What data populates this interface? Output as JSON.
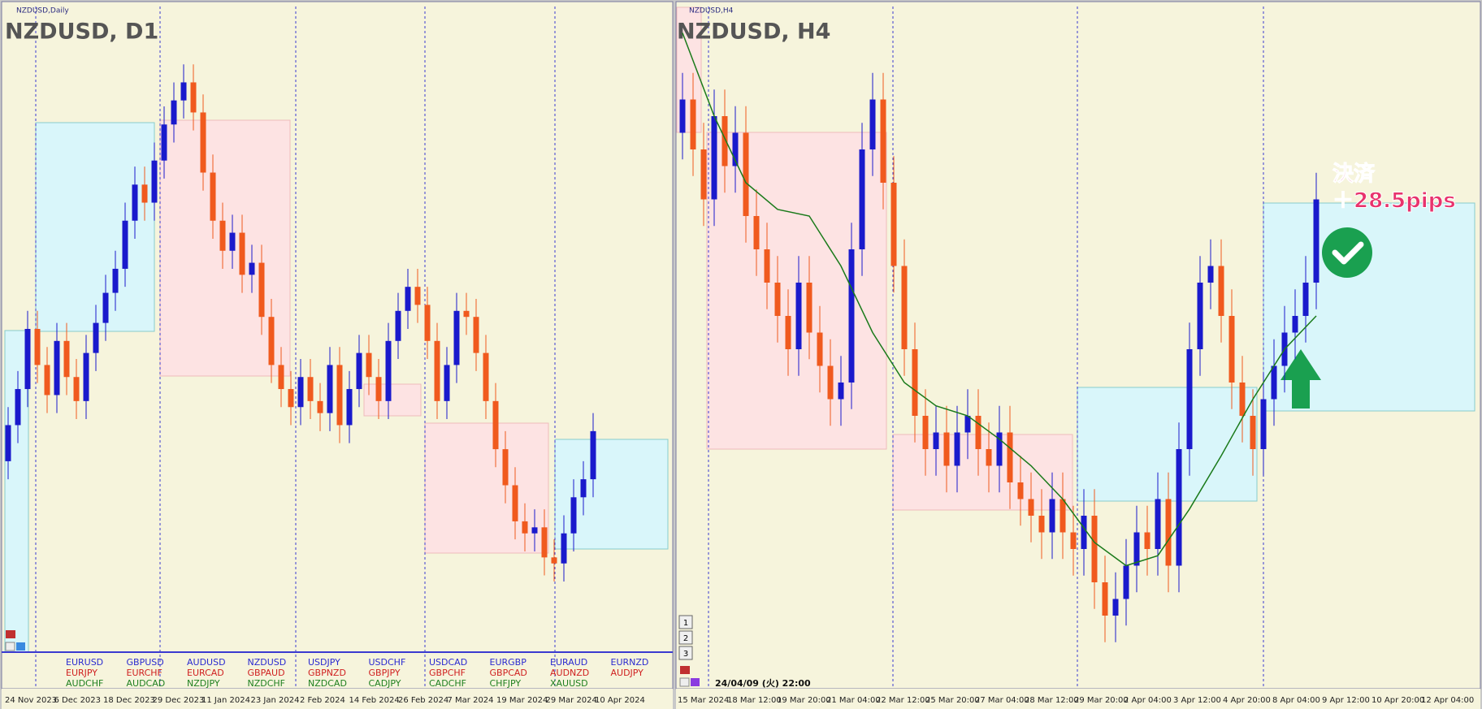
{
  "chart_data": [
    {
      "type": "candlestick",
      "window_label": "NZDUSD,Daily",
      "title": "NZDUSD, D1",
      "up_color": "#1a1acc",
      "down_color": "#f05a1e",
      "ylim": [
        0.59,
        0.642
      ],
      "x_labels": [
        "24 Nov 2023",
        "6 Dec 2023",
        "18 Dec 2023",
        "29 Dec 2023",
        "11 Jan 2024",
        "23 Jan 2024",
        "2 Feb 2024",
        "14 Feb 2024",
        "26 Feb 2024",
        "7 Mar 2024",
        "19 Mar 2024",
        "29 Mar 2024",
        "10 Apr 2024"
      ],
      "ohlc": [
        [
          0.605,
          0.6095,
          0.6035,
          0.608
        ],
        [
          0.608,
          0.6125,
          0.6065,
          0.611
        ],
        [
          0.611,
          0.6175,
          0.6095,
          0.616
        ],
        [
          0.616,
          0.6175,
          0.6115,
          0.613
        ],
        [
          0.613,
          0.6145,
          0.609,
          0.6105
        ],
        [
          0.6105,
          0.6165,
          0.609,
          0.615
        ],
        [
          0.615,
          0.6165,
          0.6105,
          0.612
        ],
        [
          0.612,
          0.6135,
          0.6085,
          0.61
        ],
        [
          0.61,
          0.6155,
          0.6085,
          0.614
        ],
        [
          0.614,
          0.618,
          0.6125,
          0.6165
        ],
        [
          0.6165,
          0.6205,
          0.615,
          0.619
        ],
        [
          0.619,
          0.6225,
          0.6175,
          0.621
        ],
        [
          0.621,
          0.6265,
          0.6195,
          0.625
        ],
        [
          0.625,
          0.6295,
          0.6235,
          0.628
        ],
        [
          0.628,
          0.6295,
          0.625,
          0.6265
        ],
        [
          0.6265,
          0.6315,
          0.625,
          0.63
        ],
        [
          0.63,
          0.6345,
          0.6285,
          0.633
        ],
        [
          0.633,
          0.6365,
          0.6315,
          0.635
        ],
        [
          0.635,
          0.638,
          0.6335,
          0.6365
        ],
        [
          0.6365,
          0.638,
          0.6325,
          0.634
        ],
        [
          0.634,
          0.6355,
          0.6275,
          0.629
        ],
        [
          0.629,
          0.6305,
          0.6235,
          0.625
        ],
        [
          0.625,
          0.6265,
          0.621,
          0.6225
        ],
        [
          0.6225,
          0.6255,
          0.621,
          0.624
        ],
        [
          0.624,
          0.6255,
          0.619,
          0.6205
        ],
        [
          0.6205,
          0.623,
          0.619,
          0.6215
        ],
        [
          0.6215,
          0.623,
          0.6155,
          0.617
        ],
        [
          0.617,
          0.6185,
          0.6115,
          0.613
        ],
        [
          0.613,
          0.6145,
          0.6095,
          0.611
        ],
        [
          0.611,
          0.6125,
          0.608,
          0.6095
        ],
        [
          0.6095,
          0.6135,
          0.608,
          0.612
        ],
        [
          0.612,
          0.6135,
          0.6085,
          0.61
        ],
        [
          0.61,
          0.6115,
          0.6075,
          0.609
        ],
        [
          0.609,
          0.6145,
          0.6075,
          0.613
        ],
        [
          0.613,
          0.6145,
          0.6065,
          0.608
        ],
        [
          0.608,
          0.6125,
          0.6065,
          0.611
        ],
        [
          0.611,
          0.6155,
          0.6095,
          0.614
        ],
        [
          0.614,
          0.6155,
          0.6105,
          0.612
        ],
        [
          0.612,
          0.6135,
          0.6085,
          0.61
        ],
        [
          0.61,
          0.6165,
          0.6085,
          0.615
        ],
        [
          0.615,
          0.619,
          0.6135,
          0.6175
        ],
        [
          0.6175,
          0.621,
          0.616,
          0.6195
        ],
        [
          0.6195,
          0.621,
          0.6165,
          0.618
        ],
        [
          0.618,
          0.6195,
          0.6135,
          0.615
        ],
        [
          0.615,
          0.6165,
          0.6085,
          0.61
        ],
        [
          0.61,
          0.6145,
          0.6085,
          0.613
        ],
        [
          0.613,
          0.619,
          0.6115,
          0.6175
        ],
        [
          0.6175,
          0.619,
          0.6155,
          0.617
        ],
        [
          0.617,
          0.6185,
          0.6125,
          0.614
        ],
        [
          0.614,
          0.6155,
          0.6085,
          0.61
        ],
        [
          0.61,
          0.6115,
          0.6045,
          0.606
        ],
        [
          0.606,
          0.6075,
          0.6015,
          0.603
        ],
        [
          0.603,
          0.6045,
          0.5985,
          0.6
        ],
        [
          0.6,
          0.6015,
          0.5975,
          0.599
        ],
        [
          0.599,
          0.601,
          0.5975,
          0.5995
        ],
        [
          0.5995,
          0.601,
          0.5955,
          0.597
        ],
        [
          0.597,
          0.5985,
          0.595,
          0.5965
        ],
        [
          0.5965,
          0.6005,
          0.595,
          0.599
        ],
        [
          0.599,
          0.6035,
          0.5975,
          0.602
        ],
        [
          0.602,
          0.605,
          0.6005,
          0.6035
        ],
        [
          0.6035,
          0.609,
          0.602,
          0.6075
        ]
      ]
    },
    {
      "type": "candlestick",
      "window_label": "NZDUSD,H4",
      "title": "NZDUSD, H4",
      "up_color": "#1a1acc",
      "down_color": "#f05a1e",
      "ma_color": "#1a7a1a",
      "ylim": [
        0.592,
        0.612
      ],
      "x_labels": [
        "15 Mar 2024",
        "18 Mar 12:00",
        "19 Mar 20:00",
        "21 Mar 04:00",
        "22 Mar 12:00",
        "25 Mar 20:00",
        "27 Mar 04:00",
        "28 Mar 12:00",
        "29 Mar 20:00",
        "2 Apr 04:00",
        "3 Apr 12:00",
        "4 Apr 20:00",
        "8 Apr 04:00",
        "9 Apr 12:00",
        "10 Apr 20:00",
        "12 Apr 04:00"
      ],
      "ohlc": [
        [
          0.6085,
          0.6103,
          0.6077,
          0.6095
        ],
        [
          0.6095,
          0.6103,
          0.6072,
          0.608
        ],
        [
          0.608,
          0.6088,
          0.6057,
          0.6065
        ],
        [
          0.6065,
          0.6098,
          0.6057,
          0.609
        ],
        [
          0.609,
          0.6098,
          0.6067,
          0.6075
        ],
        [
          0.6075,
          0.6093,
          0.6067,
          0.6085
        ],
        [
          0.6085,
          0.6093,
          0.6052,
          0.606
        ],
        [
          0.606,
          0.6068,
          0.6042,
          0.605
        ],
        [
          0.605,
          0.6058,
          0.6032,
          0.604
        ],
        [
          0.604,
          0.6048,
          0.6022,
          0.603
        ],
        [
          0.603,
          0.6038,
          0.6012,
          0.602
        ],
        [
          0.602,
          0.6048,
          0.6012,
          0.604
        ],
        [
          0.604,
          0.6048,
          0.6017,
          0.6025
        ],
        [
          0.6025,
          0.6033,
          0.6007,
          0.6015
        ],
        [
          0.6015,
          0.6023,
          0.5997,
          0.6005
        ],
        [
          0.6005,
          0.6018,
          0.5997,
          0.601
        ],
        [
          0.601,
          0.6058,
          0.6002,
          0.605
        ],
        [
          0.605,
          0.6088,
          0.6042,
          0.608
        ],
        [
          0.608,
          0.6103,
          0.6072,
          0.6095
        ],
        [
          0.6095,
          0.6103,
          0.6062,
          0.607
        ],
        [
          0.607,
          0.6078,
          0.6037,
          0.6045
        ],
        [
          0.6045,
          0.6053,
          0.6012,
          0.602
        ],
        [
          0.602,
          0.6028,
          0.5992,
          0.6
        ],
        [
          0.6,
          0.6008,
          0.5982,
          0.599
        ],
        [
          0.599,
          0.6003,
          0.5982,
          0.5995
        ],
        [
          0.5995,
          0.6003,
          0.5977,
          0.5985
        ],
        [
          0.5985,
          0.6003,
          0.5977,
          0.5995
        ],
        [
          0.5995,
          0.6008,
          0.5987,
          0.6
        ],
        [
          0.6,
          0.6008,
          0.5982,
          0.599
        ],
        [
          0.599,
          0.5998,
          0.5977,
          0.5985
        ],
        [
          0.5985,
          0.6003,
          0.5977,
          0.5995
        ],
        [
          0.5995,
          0.6003,
          0.5972,
          0.598
        ],
        [
          0.598,
          0.5988,
          0.5967,
          0.5975
        ],
        [
          0.5975,
          0.5983,
          0.5962,
          0.597
        ],
        [
          0.597,
          0.5978,
          0.5957,
          0.5965
        ],
        [
          0.5965,
          0.5983,
          0.5957,
          0.5975
        ],
        [
          0.5975,
          0.5983,
          0.5957,
          0.5965
        ],
        [
          0.5965,
          0.5973,
          0.5952,
          0.596
        ],
        [
          0.596,
          0.5978,
          0.5952,
          0.597
        ],
        [
          0.597,
          0.5978,
          0.5942,
          0.595
        ],
        [
          0.595,
          0.5958,
          0.5932,
          0.594
        ],
        [
          0.594,
          0.5953,
          0.5932,
          0.5945
        ],
        [
          0.5945,
          0.5963,
          0.5937,
          0.5955
        ],
        [
          0.5955,
          0.5973,
          0.5947,
          0.5965
        ],
        [
          0.5965,
          0.5973,
          0.5952,
          0.596
        ],
        [
          0.596,
          0.5983,
          0.5952,
          0.5975
        ],
        [
          0.5975,
          0.5983,
          0.5947,
          0.5955
        ],
        [
          0.5955,
          0.5998,
          0.5947,
          0.599
        ],
        [
          0.599,
          0.6028,
          0.5982,
          0.602
        ],
        [
          0.602,
          0.6048,
          0.6012,
          0.604
        ],
        [
          0.604,
          0.6053,
          0.6032,
          0.6045
        ],
        [
          0.6045,
          0.6053,
          0.6022,
          0.603
        ],
        [
          0.603,
          0.6038,
          0.6002,
          0.601
        ],
        [
          0.601,
          0.6018,
          0.5992,
          0.6
        ],
        [
          0.6,
          0.6008,
          0.5982,
          0.599
        ],
        [
          0.599,
          0.6013,
          0.5982,
          0.6005
        ],
        [
          0.6005,
          0.6023,
          0.5997,
          0.6015
        ],
        [
          0.6015,
          0.6033,
          0.6007,
          0.6025
        ],
        [
          0.6025,
          0.6038,
          0.6017,
          0.603
        ],
        [
          0.603,
          0.6048,
          0.6022,
          0.604
        ],
        [
          0.604,
          0.6073,
          0.6032,
          0.6065
        ]
      ],
      "ma": [
        0.6115,
        0.609,
        0.607,
        0.6062,
        0.606,
        0.6045,
        0.6025,
        0.601,
        0.6003,
        0.6,
        0.5993,
        0.5985,
        0.5975,
        0.5962,
        0.5955,
        0.5958,
        0.5972,
        0.5988,
        0.6005,
        0.602,
        0.603
      ],
      "timestamp": "24/04/09 (火) 22:00",
      "annotation": [
        "決済",
        "＋28.5pips"
      ],
      "buttons": [
        "1",
        "2",
        "3"
      ]
    }
  ],
  "symbol_list": [
    [
      "EURUSD",
      "EURJPY",
      "AUDCHF"
    ],
    [
      "GBPUSD",
      "EURCHF",
      "AUDCAD"
    ],
    [
      "AUDUSD",
      "EURCAD",
      "NZDJPY"
    ],
    [
      "NZDUSD",
      "GBPAUD",
      "NZDCHF"
    ],
    [
      "USDJPY",
      "GBPNZD",
      "NZDCAD"
    ],
    [
      "USDCHF",
      "GBPJPY",
      "CADJPY"
    ],
    [
      "USDCAD",
      "GBPCHF",
      "CADCHF"
    ],
    [
      "EURGBP",
      "GBPCAD",
      "CHFJPY"
    ],
    [
      "EURAUD",
      "AUDNZD",
      "XAUUSD"
    ],
    [
      "EURNZD",
      "AUDJPY"
    ]
  ]
}
